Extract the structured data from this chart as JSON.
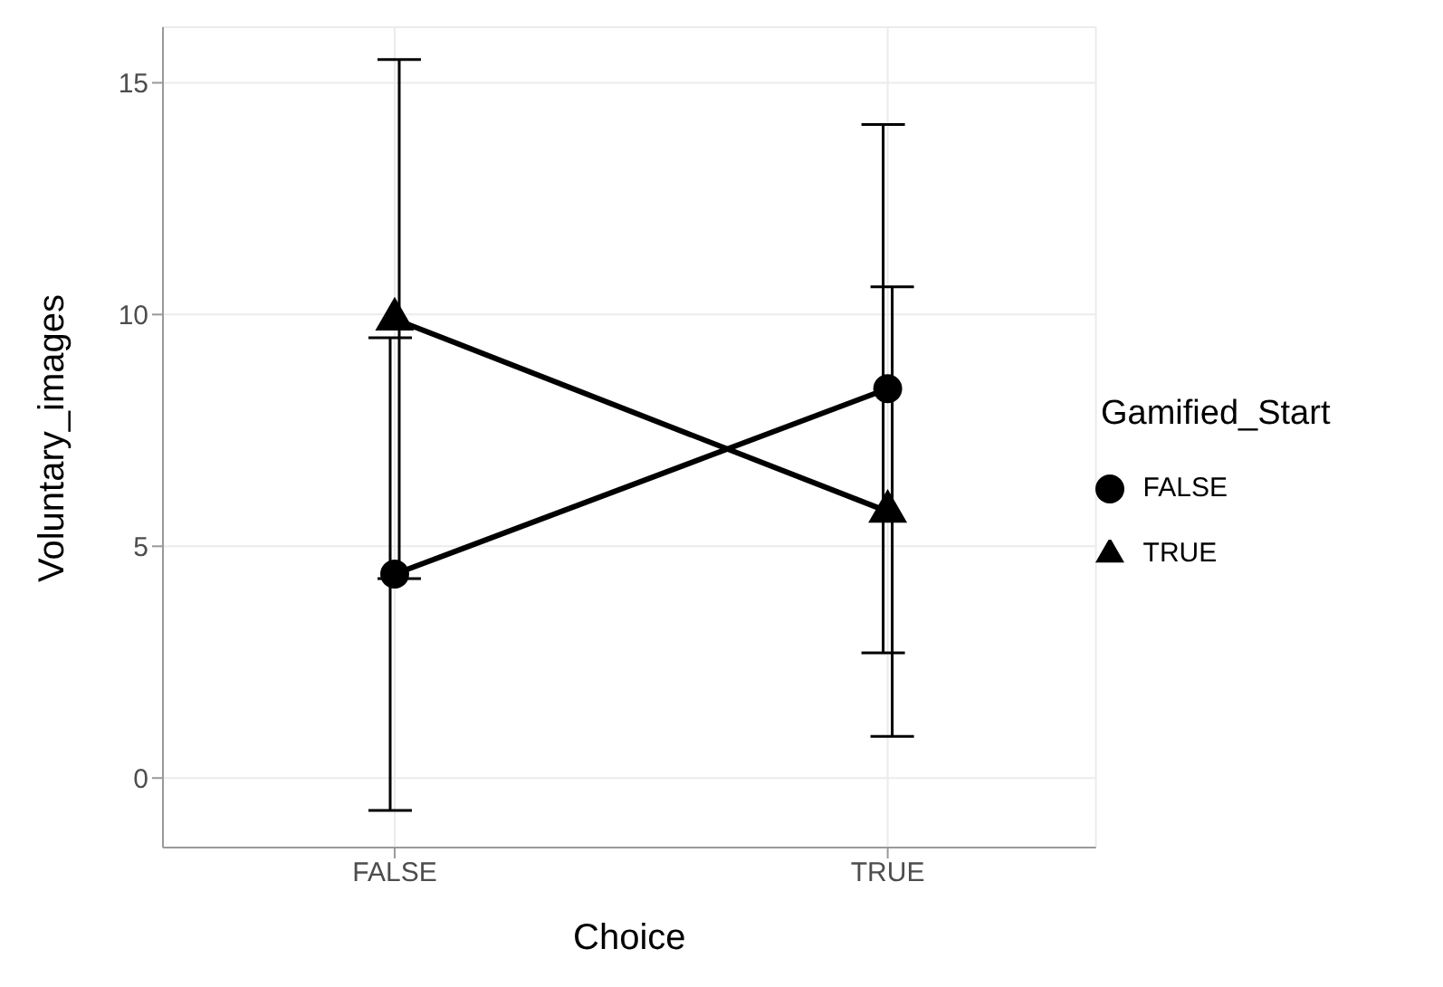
{
  "chart_data": {
    "type": "line",
    "xlabel": "Choice",
    "ylabel": "Voluntary_images",
    "legend_title": "Gamified_Start",
    "categories": [
      "FALSE",
      "TRUE"
    ],
    "series": [
      {
        "name": "FALSE",
        "color": "#000000",
        "marker": "circle",
        "values": [
          4.4,
          8.4
        ],
        "errors": [
          5.1,
          5.7
        ]
      },
      {
        "name": "TRUE",
        "color": "#000000",
        "marker": "triangle",
        "values": [
          9.9,
          5.75
        ],
        "errors": [
          5.6,
          4.85
        ]
      }
    ],
    "ylim": [
      -1.5,
      16.2
    ],
    "yticks": [
      0,
      5,
      10,
      15
    ],
    "grid": true,
    "legend": "right",
    "line_style": "solid"
  }
}
